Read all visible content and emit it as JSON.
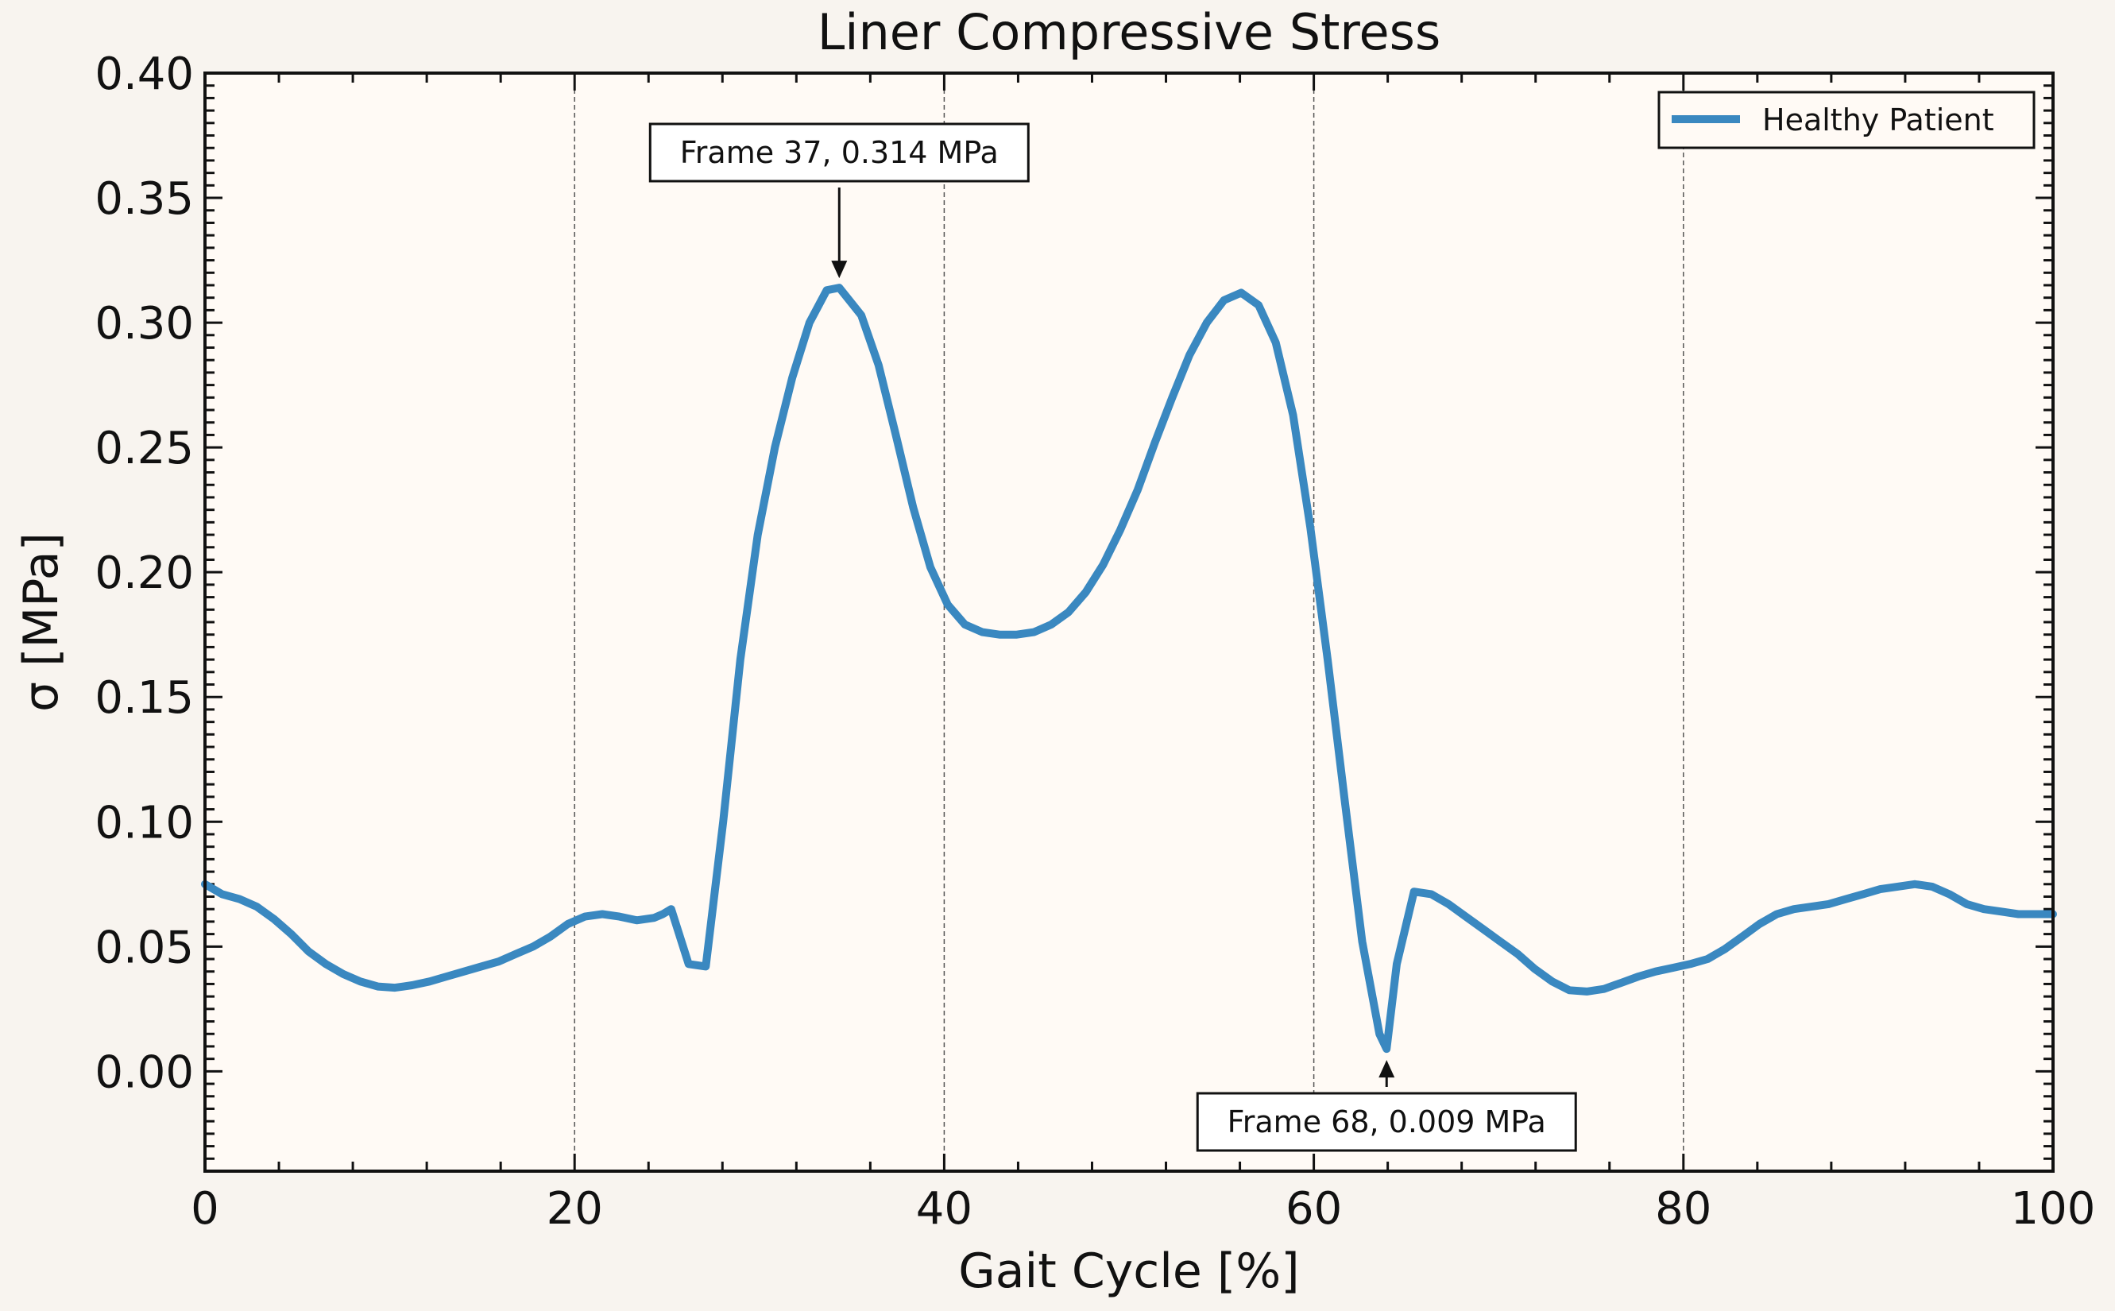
{
  "chart_data": {
    "type": "line",
    "title": "Liner Compressive Stress",
    "xlabel": "Gait Cycle [%]",
    "ylabel": "σ [MPa]",
    "xlim": [
      0,
      100
    ],
    "ylim": [
      -0.04,
      0.4
    ],
    "xticks": [
      0,
      20,
      40,
      60,
      80,
      100
    ],
    "xtick_labels": [
      "0",
      "20",
      "40",
      "60",
      "80",
      "100"
    ],
    "yticks": [
      0.0,
      0.05,
      0.1,
      0.15,
      0.2,
      0.25,
      0.3,
      0.35,
      0.4
    ],
    "ytick_labels": [
      "0.00",
      "0.05",
      "0.10",
      "0.15",
      "0.20",
      "0.25",
      "0.30",
      "0.35",
      "0.40"
    ],
    "vertical_gridlines": [
      20,
      40,
      60,
      80
    ],
    "legend": {
      "placement": "top-right",
      "entries": [
        "Healthy Patient"
      ]
    },
    "series": [
      {
        "name": "Healthy Patient",
        "color": "#3a88c0",
        "x": [
          0,
          0.93,
          1.87,
          2.8,
          3.74,
          4.67,
          5.61,
          6.54,
          7.48,
          8.41,
          9.35,
          10.28,
          11.21,
          12.15,
          13.08,
          14.02,
          14.95,
          15.89,
          16.82,
          17.76,
          18.69,
          19.63,
          20.56,
          21.5,
          22.43,
          23.36,
          24.3,
          24.77,
          25.23,
          26.17,
          27.1,
          28.04,
          28.97,
          29.91,
          30.84,
          31.78,
          32.71,
          33.64,
          34.32,
          35.51,
          36.45,
          37.38,
          38.32,
          39.25,
          40.19,
          41.12,
          42.06,
          42.99,
          43.93,
          44.86,
          45.79,
          46.73,
          47.66,
          48.6,
          49.53,
          50.47,
          51.4,
          52.34,
          53.27,
          54.21,
          55.14,
          56.07,
          57.01,
          57.94,
          58.88,
          59.81,
          60.75,
          61.68,
          62.62,
          63.55,
          63.94,
          64.49,
          65.42,
          66.36,
          67.29,
          68.22,
          69.16,
          70.09,
          71.03,
          71.96,
          72.9,
          73.83,
          74.77,
          75.7,
          76.64,
          77.57,
          78.5,
          79.44,
          80.37,
          81.31,
          82.24,
          83.18,
          84.11,
          85.05,
          85.98,
          86.92,
          87.85,
          88.79,
          89.72,
          90.65,
          91.59,
          92.52,
          93.46,
          94.39,
          95.33,
          96.26,
          97.2,
          98.13,
          99.07,
          100
        ],
        "y": [
          0.075,
          0.071,
          0.069,
          0.066,
          0.061,
          0.055,
          0.048,
          0.043,
          0.039,
          0.036,
          0.034,
          0.0335,
          0.0345,
          0.036,
          0.038,
          0.04,
          0.042,
          0.044,
          0.047,
          0.05,
          0.054,
          0.059,
          0.062,
          0.063,
          0.062,
          0.0605,
          0.0615,
          0.063,
          0.065,
          0.043,
          0.042,
          0.1,
          0.165,
          0.215,
          0.25,
          0.278,
          0.3,
          0.313,
          0.314,
          0.303,
          0.283,
          0.255,
          0.226,
          0.202,
          0.187,
          0.179,
          0.176,
          0.175,
          0.175,
          0.176,
          0.179,
          0.184,
          0.192,
          0.203,
          0.217,
          0.233,
          0.252,
          0.27,
          0.287,
          0.3,
          0.309,
          0.312,
          0.307,
          0.292,
          0.263,
          0.218,
          0.165,
          0.108,
          0.052,
          0.015,
          0.009,
          0.043,
          0.072,
          0.071,
          0.067,
          0.062,
          0.057,
          0.052,
          0.047,
          0.041,
          0.036,
          0.0325,
          0.032,
          0.033,
          0.0355,
          0.038,
          0.04,
          0.0415,
          0.043,
          0.045,
          0.049,
          0.054,
          0.059,
          0.063,
          0.065,
          0.066,
          0.067,
          0.069,
          0.071,
          0.073,
          0.074,
          0.075,
          0.074,
          0.071,
          0.067,
          0.065,
          0.064,
          0.063,
          0.063,
          0.063
        ]
      }
    ],
    "annotations": [
      {
        "text": "Frame 37, 0.314 MPa",
        "x": 34.32,
        "y": 0.314,
        "position": "above"
      },
      {
        "text": "Frame 68, 0.009 MPa",
        "x": 63.94,
        "y": 0.009,
        "position": "below"
      }
    ]
  }
}
